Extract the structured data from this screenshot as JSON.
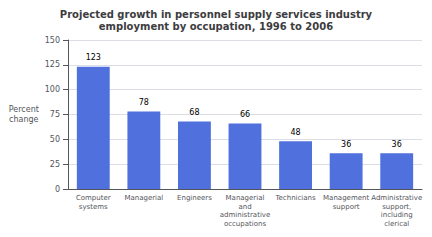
{
  "chart_data": {
    "type": "bar",
    "title": "Projected growth in personnel supply services industry\nemployment by occupation, 1996 to 2006",
    "ylabel": "Percent\nchange",
    "categories": [
      "Computer\nsystems",
      "Managerial",
      "Engineers",
      "Managerial\nand\nadministrative\noccupations",
      "Technicians",
      "Management\nsupport",
      "Administrative\nsupport,\nincluding\nclerical"
    ],
    "values": [
      123,
      78,
      68,
      66,
      48,
      36,
      36
    ],
    "ylim": [
      0,
      150
    ],
    "yticks": [
      0,
      25,
      50,
      75,
      100,
      125,
      150
    ],
    "grid": true,
    "data_labels": true
  }
}
